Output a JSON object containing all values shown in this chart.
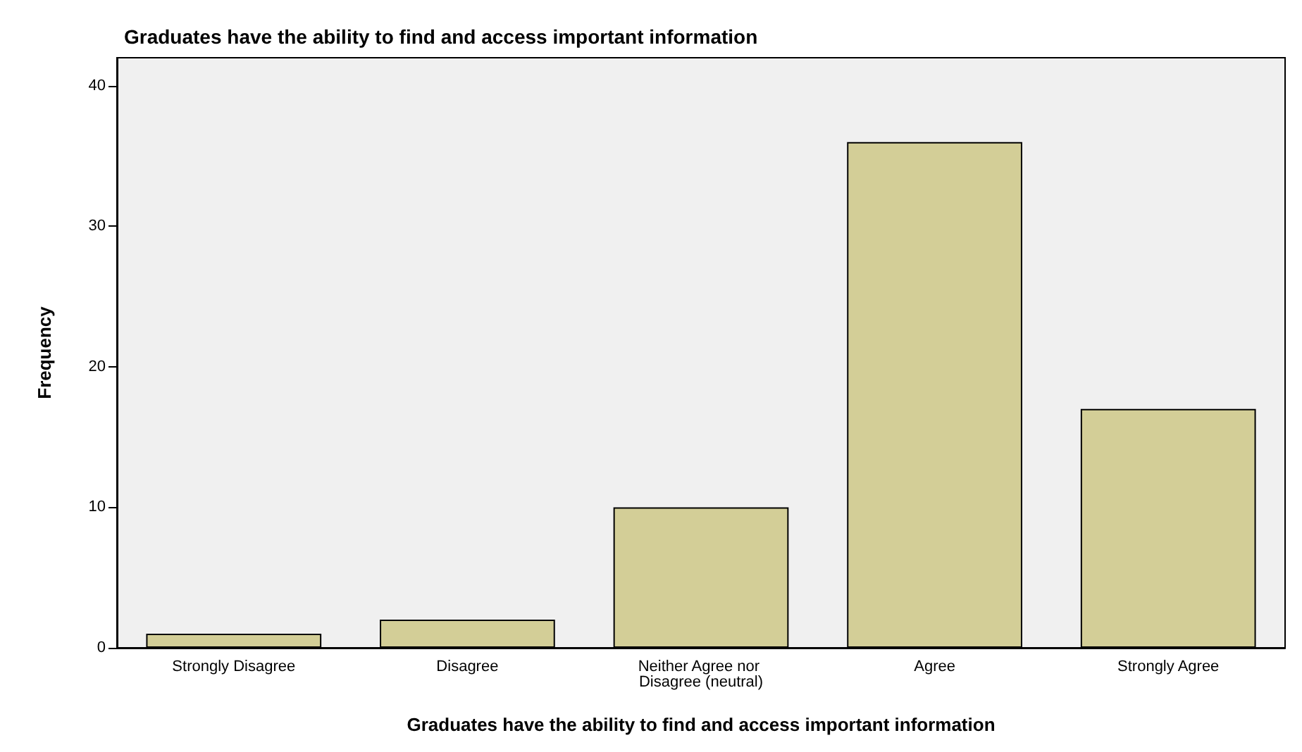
{
  "chart_data": {
    "type": "bar",
    "title": "Graduates have the ability to find and access important information",
    "xlabel": "Graduates have the ability to find and access important information",
    "ylabel": "Frequency",
    "categories": [
      "Strongly Disagree",
      "Disagree",
      "Neither Agree nor Disagree (neutral)",
      "Agree",
      "Strongly Agree"
    ],
    "values": [
      1,
      2,
      10,
      36,
      17
    ],
    "color": "#d3ce97",
    "ylim": [
      0,
      42
    ],
    "yticks": [
      0,
      10,
      20,
      30,
      40
    ],
    "grid": false
  }
}
